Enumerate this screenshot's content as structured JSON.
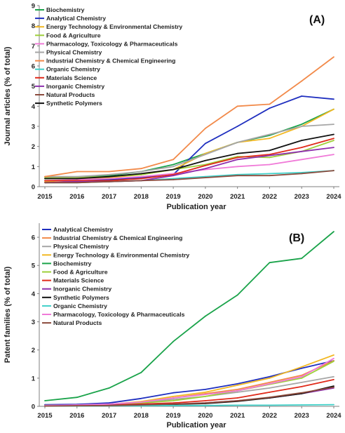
{
  "chart_data": [
    {
      "type": "line",
      "panel_label": "(A)",
      "xlabel": "Publication year",
      "ylabel": "Journal articles (% of total)",
      "x": [
        2015,
        2016,
        2017,
        2018,
        2019,
        2020,
        2021,
        2022,
        2023,
        2024
      ],
      "ylim": [
        0,
        9
      ],
      "yticks": [
        0,
        1,
        2,
        3,
        4,
        5,
        6,
        7,
        8,
        9
      ],
      "grid": false,
      "legend_position": "top-left",
      "series": [
        {
          "name": "Biochemistry",
          "color": "#1aa34a",
          "values": [
            0.4,
            0.45,
            0.55,
            0.75,
            1.1,
            1.65,
            2.2,
            2.55,
            3.1,
            3.85
          ]
        },
        {
          "name": "Analytical Chemistry",
          "color": "#1f2fbf",
          "values": [
            0.3,
            0.3,
            0.35,
            0.45,
            0.6,
            2.15,
            3.0,
            3.9,
            4.5,
            4.35
          ]
        },
        {
          "name": "Energy Technology & Environmental Chemistry",
          "color": "#f2b822",
          "values": [
            0.25,
            0.35,
            0.45,
            0.6,
            0.85,
            1.65,
            2.2,
            2.4,
            3.0,
            3.85
          ]
        },
        {
          "name": "Food & Agriculture",
          "color": "#9ecf3a",
          "values": [
            0.45,
            0.45,
            0.5,
            0.6,
            0.85,
            1.1,
            1.5,
            1.45,
            1.75,
            2.3
          ]
        },
        {
          "name": "Pharmacology, Toxicology & Pharmaceuticals",
          "color": "#f07ad8",
          "values": [
            0.3,
            0.35,
            0.4,
            0.5,
            0.65,
            0.85,
            1.0,
            1.1,
            1.35,
            1.6
          ]
        },
        {
          "name": "Physical Chemistry",
          "color": "#a6a6a6",
          "values": [
            0.5,
            0.5,
            0.6,
            0.75,
            1.0,
            1.6,
            2.2,
            2.6,
            3.0,
            3.1
          ]
        },
        {
          "name": "Industrial Chemistry & Chemical Engineering",
          "color": "#f28a4a",
          "values": [
            0.5,
            0.75,
            0.75,
            0.9,
            1.35,
            2.9,
            4.0,
            4.1,
            5.25,
            6.45
          ]
        },
        {
          "name": "Organic Chemistry",
          "color": "#3fd0c8",
          "values": [
            0.2,
            0.2,
            0.25,
            0.3,
            0.4,
            0.5,
            0.6,
            0.65,
            0.7,
            0.8
          ]
        },
        {
          "name": "Materials Science",
          "color": "#e02a1a",
          "values": [
            0.3,
            0.3,
            0.3,
            0.4,
            0.6,
            1.05,
            1.45,
            1.6,
            1.95,
            2.4
          ]
        },
        {
          "name": "Inorganic Chemistry",
          "color": "#8e2fae",
          "values": [
            0.2,
            0.25,
            0.25,
            0.3,
            0.55,
            0.9,
            1.35,
            1.55,
            1.75,
            1.95
          ]
        },
        {
          "name": "Natural Products",
          "color": "#8b4a3c",
          "values": [
            0.2,
            0.2,
            0.25,
            0.3,
            0.35,
            0.45,
            0.55,
            0.55,
            0.65,
            0.8
          ]
        },
        {
          "name": "Synthetic Polymers",
          "color": "#111111",
          "values": [
            0.4,
            0.4,
            0.5,
            0.65,
            0.85,
            1.3,
            1.65,
            1.8,
            2.3,
            2.6
          ]
        }
      ]
    },
    {
      "type": "line",
      "panel_label": "(B)",
      "xlabel": "Publication year",
      "ylabel": "Patent families (% of total)",
      "x": [
        2015,
        2016,
        2017,
        2018,
        2019,
        2020,
        2021,
        2022,
        2023,
        2024
      ],
      "ylim": [
        0,
        6.5
      ],
      "yticks": [
        0,
        1,
        2,
        3,
        4,
        5,
        6
      ],
      "grid": false,
      "legend_position": "top-left",
      "series": [
        {
          "name": "Analytical Chemistry",
          "color": "#1f2fbf",
          "values": [
            0.06,
            0.07,
            0.12,
            0.28,
            0.48,
            0.6,
            0.8,
            1.05,
            1.35,
            1.62
          ]
        },
        {
          "name": "Industrial Chemistry & Chemical Engineering",
          "color": "#f28a4a",
          "values": [
            0.03,
            0.04,
            0.06,
            0.15,
            0.3,
            0.45,
            0.6,
            0.85,
            1.1,
            1.62
          ]
        },
        {
          "name": "Physical Chemistry",
          "color": "#a6a6a6",
          "values": [
            0.03,
            0.04,
            0.06,
            0.13,
            0.25,
            0.35,
            0.5,
            0.65,
            0.85,
            1.05
          ]
        },
        {
          "name": "Energy Technology & Environmental Chemistry",
          "color": "#f2b822",
          "values": [
            0.03,
            0.04,
            0.07,
            0.17,
            0.35,
            0.5,
            0.75,
            1.0,
            1.4,
            1.82
          ]
        },
        {
          "name": "Biochemistry",
          "color": "#1aa34a",
          "values": [
            0.2,
            0.32,
            0.65,
            1.2,
            2.3,
            3.2,
            3.95,
            5.1,
            5.25,
            6.2
          ]
        },
        {
          "name": "Food & Agriculture",
          "color": "#9ecf3a",
          "values": [
            0.03,
            0.04,
            0.06,
            0.12,
            0.2,
            0.35,
            0.55,
            0.78,
            1.0,
            1.6
          ]
        },
        {
          "name": "Materials Science",
          "color": "#e02a1a",
          "values": [
            0.02,
            0.03,
            0.05,
            0.08,
            0.12,
            0.2,
            0.3,
            0.5,
            0.7,
            0.95
          ]
        },
        {
          "name": "Inorganic Chemistry",
          "color": "#8e2fae",
          "values": [
            0.01,
            0.02,
            0.03,
            0.05,
            0.08,
            0.12,
            0.2,
            0.3,
            0.45,
            0.65
          ]
        },
        {
          "name": "Synthetic Polymers",
          "color": "#111111",
          "values": [
            0.02,
            0.02,
            0.03,
            0.04,
            0.07,
            0.1,
            0.18,
            0.3,
            0.45,
            0.72
          ]
        },
        {
          "name": "Organic Chemistry",
          "color": "#3fd0c8",
          "values": [
            0.01,
            0.01,
            0.02,
            0.02,
            0.03,
            0.03,
            0.04,
            0.04,
            0.05,
            0.06
          ]
        },
        {
          "name": "Pharmacology, Toxicology & Pharmaceuticals",
          "color": "#f07ad8",
          "values": [
            0.03,
            0.05,
            0.08,
            0.15,
            0.3,
            0.42,
            0.55,
            0.8,
            1.05,
            1.7
          ]
        },
        {
          "name": "Natural Products",
          "color": "#8b4a3c",
          "values": [
            0.01,
            0.02,
            0.03,
            0.05,
            0.08,
            0.12,
            0.2,
            0.32,
            0.48,
            0.68
          ]
        }
      ]
    }
  ]
}
